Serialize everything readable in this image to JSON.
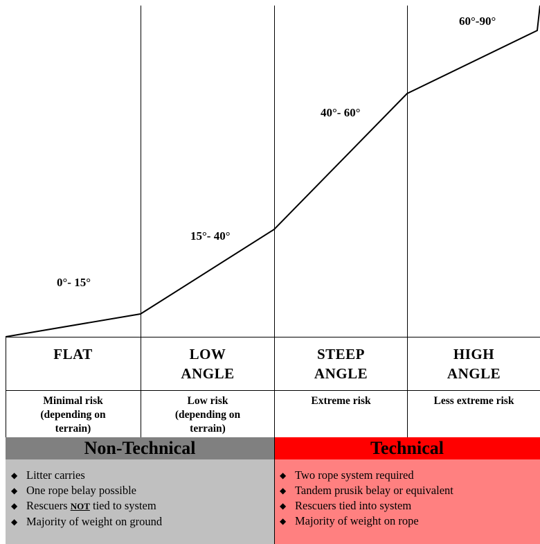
{
  "angles": {
    "flat": "0°- 15°",
    "low": "15°- 40°",
    "steep": "40°- 60°",
    "high": "60°-90°"
  },
  "zones": {
    "flat": {
      "name": [
        "FLAT"
      ],
      "risk": [
        "Minimal risk",
        "(depending on",
        "terrain)"
      ]
    },
    "low": {
      "name": [
        "LOW",
        "ANGLE"
      ],
      "risk": [
        "Low risk",
        "(depending on",
        "terrain)"
      ]
    },
    "steep": {
      "name": [
        "STEEP",
        "ANGLE"
      ],
      "risk": [
        "Extreme risk"
      ]
    },
    "high": {
      "name": [
        "HIGH",
        "ANGLE"
      ],
      "risk": [
        "Less extreme risk"
      ]
    }
  },
  "non_technical": {
    "title": "Non-Technical",
    "bullets": [
      "Litter carries",
      "One rope belay possible",
      {
        "before": "Rescuers ",
        "emph": "NOT",
        "after": " tied to system"
      },
      "Majority of weight on ground"
    ]
  },
  "technical": {
    "title": "Technical",
    "bullets": [
      "Two rope system required",
      "Tandem prusik belay or equivalent",
      "Rescuers tied into system",
      "Majority of weight on rope"
    ]
  },
  "colors": {
    "non_technical_header": "#808080",
    "non_technical_body": "#c0c0c0",
    "technical_header": "#ff0000",
    "technical_body": "#ff8080"
  },
  "bullet_icon": "diamond"
}
